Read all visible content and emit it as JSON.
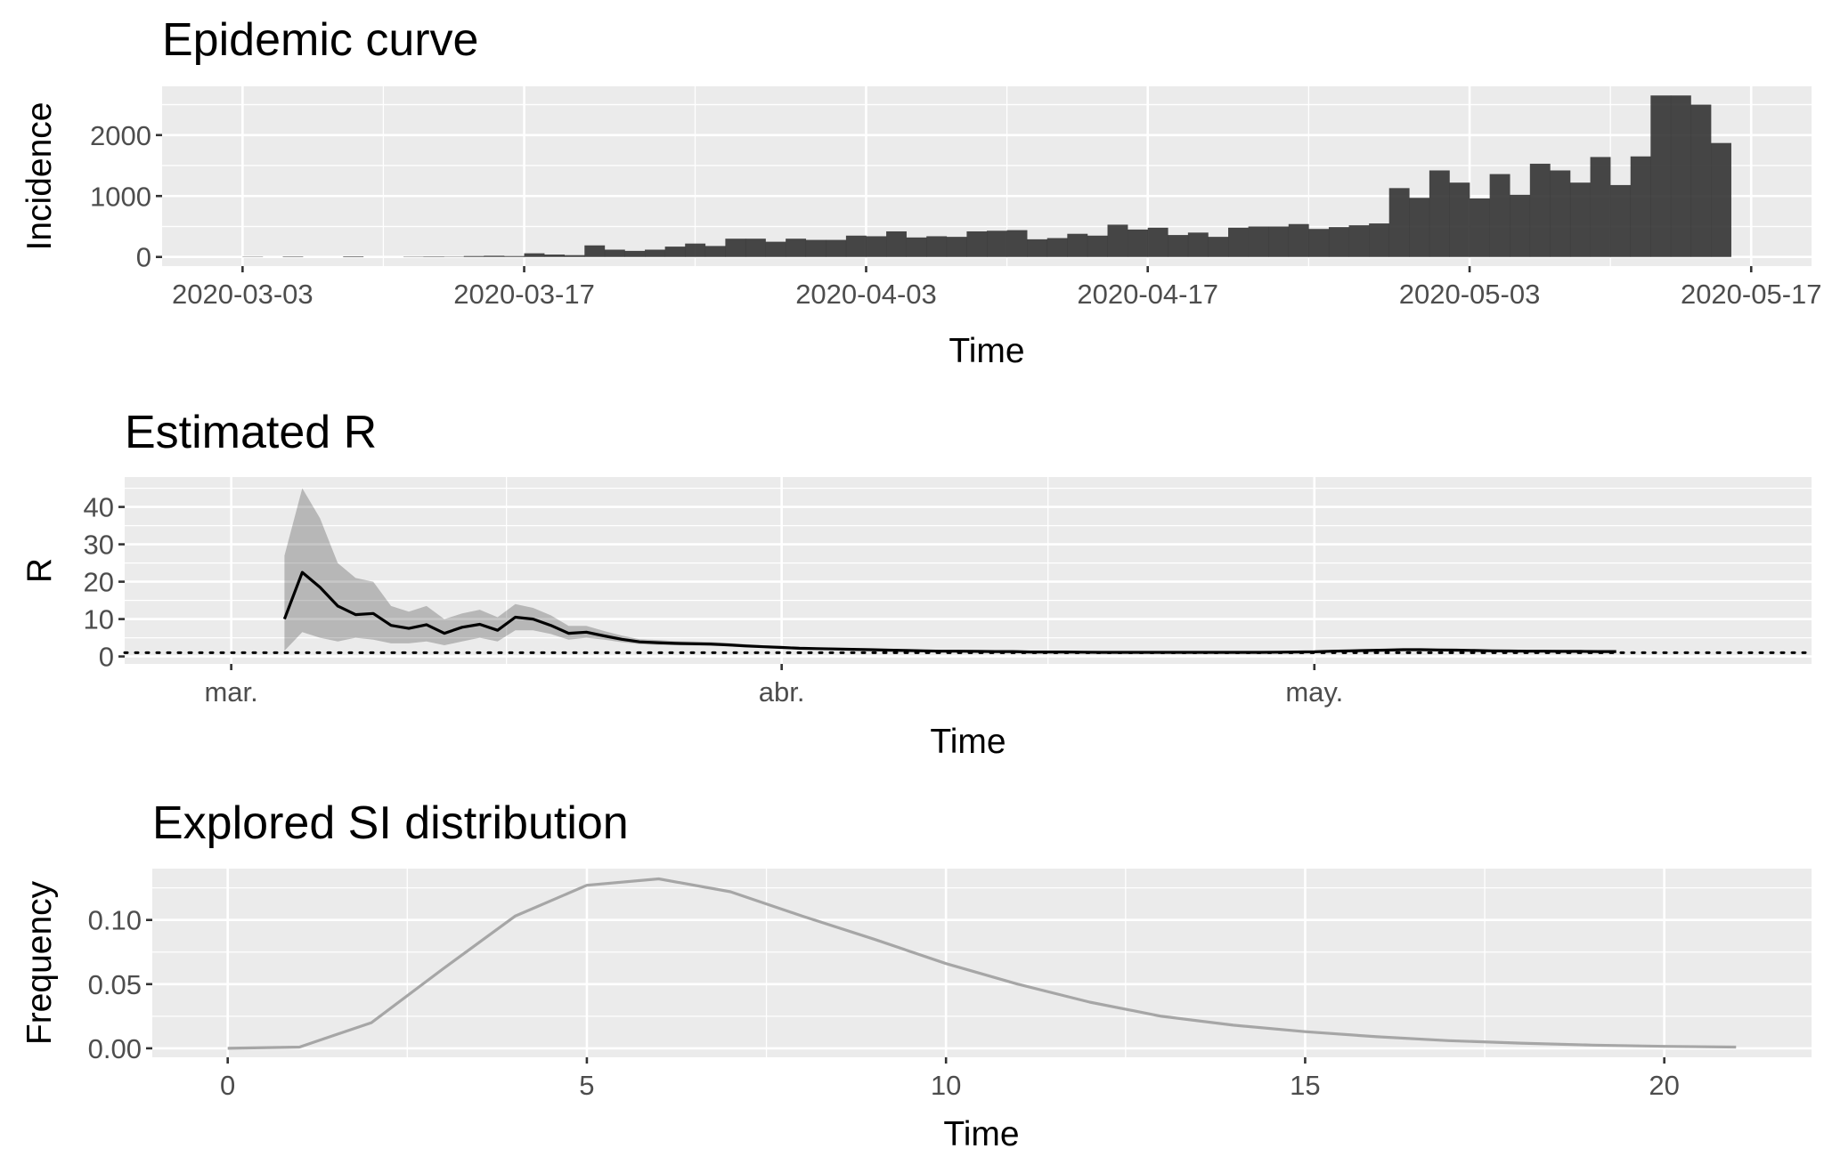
{
  "chart_data": [
    {
      "type": "bar",
      "title": "Epidemic curve",
      "xlabel": "Time",
      "ylabel": "Incidence",
      "x_start": "2020-03-01",
      "x_end": "2020-05-17",
      "xlim": [
        "2020-02-28",
        "2020-05-20"
      ],
      "ylim": [
        -150,
        2800
      ],
      "x_ticks": [
        "2020-03-03",
        "2020-03-17",
        "2020-04-03",
        "2020-04-17",
        "2020-05-03",
        "2020-05-17"
      ],
      "y_ticks": [
        0,
        1000,
        2000
      ],
      "grid": true,
      "values": [
        0,
        0,
        5,
        0,
        8,
        0,
        0,
        10,
        0,
        0,
        5,
        8,
        5,
        15,
        20,
        15,
        60,
        40,
        30,
        190,
        120,
        100,
        120,
        170,
        220,
        180,
        300,
        300,
        250,
        300,
        280,
        280,
        350,
        340,
        420,
        320,
        340,
        330,
        420,
        430,
        440,
        290,
        310,
        380,
        350,
        530,
        450,
        480,
        360,
        400,
        330,
        480,
        500,
        500,
        540,
        460,
        490,
        520,
        550,
        1130,
        970,
        1420,
        1220,
        960,
        1360,
        1020,
        1530,
        1420,
        1220,
        1640,
        1180,
        1650,
        2650,
        2650,
        2500,
        1870
      ]
    },
    {
      "type": "line",
      "title": "Estimated R",
      "xlabel": "Time",
      "ylabel": "R",
      "xlim": [
        "2020-02-24",
        "2020-05-29"
      ],
      "ylim": [
        -2,
        48
      ],
      "x_ticks": [
        {
          "date": "2020-03-01",
          "label": "mar."
        },
        {
          "date": "2020-04-01",
          "label": "abr."
        },
        {
          "date": "2020-05-01",
          "label": "may."
        }
      ],
      "y_ticks": [
        0,
        10,
        20,
        30,
        40
      ],
      "grid": true,
      "reference_line": 1,
      "start_date": "2020-03-04",
      "mean": [
        10,
        22.5,
        18.5,
        13.5,
        11.2,
        11.5,
        8.3,
        7.5,
        8.5,
        6.2,
        7.8,
        8.6,
        7,
        10.5,
        10,
        8.3,
        6.2,
        6.5,
        5.5,
        4.6,
        3.9,
        3.7,
        3.5,
        3.4,
        3.3,
        3.1,
        2.8,
        2.6,
        2.4,
        2.2,
        2.1,
        2,
        1.9,
        1.8,
        1.7,
        1.6,
        1.5,
        1.4,
        1.4,
        1.35,
        1.3,
        1.3,
        1.2,
        1.2,
        1.2,
        1.15,
        1.1,
        1.1,
        1.1,
        1.1,
        1.1,
        1.1,
        1.1,
        1.1,
        1.1,
        1.1,
        1.15,
        1.2,
        1.25,
        1.4,
        1.5,
        1.6,
        1.7,
        1.8,
        1.8,
        1.75,
        1.7,
        1.6,
        1.5,
        1.45,
        1.4,
        1.4,
        1.35,
        1.35,
        1.3,
        1.3
      ],
      "lower": [
        1.5,
        6.5,
        5,
        4,
        5,
        4.5,
        3.5,
        3.5,
        4,
        3,
        4,
        5,
        4,
        7,
        7,
        6,
        4.5,
        5,
        4.5,
        3.8,
        3.3,
        3.1,
        3,
        2.9,
        2.8,
        2.7,
        2.4,
        2.3,
        2.1,
        1.9,
        1.85,
        1.75,
        1.65,
        1.55,
        1.5,
        1.4,
        1.35,
        1.3,
        1.25,
        1.2,
        1.15,
        1.15,
        1.1,
        1.1,
        1.1,
        1.05,
        1,
        1,
        1,
        1,
        1,
        1,
        1,
        1,
        1,
        1,
        1.05,
        1.1,
        1.15,
        1.3,
        1.4,
        1.5,
        1.6,
        1.7,
        1.7,
        1.65,
        1.6,
        1.5,
        1.4,
        1.35,
        1.3,
        1.3,
        1.25,
        1.25,
        1.2,
        1.2
      ],
      "upper": [
        27,
        45,
        37,
        25,
        21,
        20,
        13.5,
        12,
        13.5,
        10,
        11.5,
        12.5,
        10.5,
        14,
        13,
        11,
        8.2,
        8.2,
        6.8,
        5.6,
        4.6,
        4.4,
        4.1,
        4,
        3.9,
        3.6,
        3.3,
        3,
        2.8,
        2.5,
        2.4,
        2.3,
        2.2,
        2.05,
        1.95,
        1.8,
        1.7,
        1.6,
        1.55,
        1.5,
        1.45,
        1.45,
        1.35,
        1.35,
        1.35,
        1.3,
        1.25,
        1.25,
        1.2,
        1.2,
        1.2,
        1.2,
        1.2,
        1.2,
        1.2,
        1.2,
        1.25,
        1.3,
        1.35,
        1.5,
        1.6,
        1.7,
        1.8,
        1.9,
        1.9,
        1.85,
        1.8,
        1.7,
        1.6,
        1.55,
        1.5,
        1.5,
        1.45,
        1.45,
        1.4,
        1.4
      ]
    },
    {
      "type": "line",
      "title": "Explored SI distribution",
      "xlabel": "Time",
      "ylabel": "Frequency",
      "xlim": [
        -1.05,
        22.05
      ],
      "ylim": [
        -0.007,
        0.14
      ],
      "x_ticks": [
        0,
        5,
        10,
        15,
        20
      ],
      "y_ticks": [
        {
          "value": 0,
          "label": "0.00"
        },
        {
          "value": 0.05,
          "label": "0.05"
        },
        {
          "value": 0.1,
          "label": "0.10"
        }
      ],
      "grid": true,
      "x": [
        0,
        1,
        2,
        3,
        4,
        5,
        6,
        7,
        8,
        9,
        10,
        11,
        12,
        13,
        14,
        15,
        16,
        17,
        18,
        19,
        20,
        21
      ],
      "y": [
        0,
        0.001,
        0.02,
        0.062,
        0.103,
        0.127,
        0.132,
        0.122,
        0.103,
        0.085,
        0.066,
        0.05,
        0.036,
        0.025,
        0.018,
        0.013,
        0.009,
        0.006,
        0.004,
        0.0025,
        0.0015,
        0.001
      ]
    }
  ]
}
